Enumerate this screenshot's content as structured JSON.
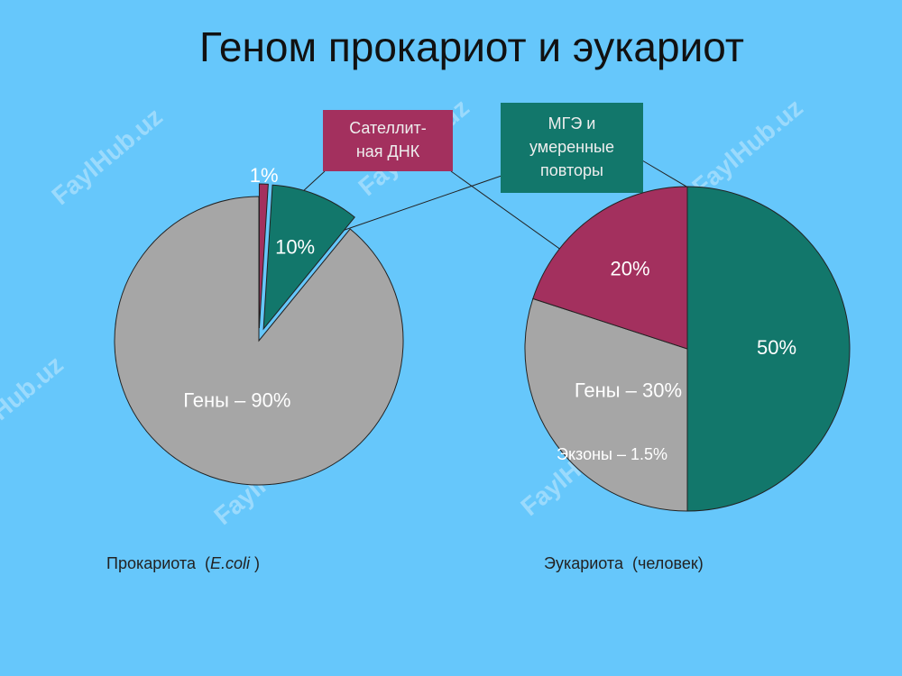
{
  "title": "Геном прокариот и эукариот",
  "watermark": "FaylHub.uz",
  "callouts": [
    {
      "lines": [
        "Сателлит-",
        "ная ДНК"
      ],
      "color": "#a3305e"
    },
    {
      "lines": [
        "МГЭ и",
        "умеренные",
        "повторы"
      ],
      "color": "#12776b"
    }
  ],
  "chart_data": [
    {
      "type": "pie",
      "caption": [
        "Прокариота  (",
        "E.coli",
        " )"
      ],
      "values": [
        1,
        10,
        90
      ],
      "value_labels": [
        "1%",
        "10%",
        "Гены – 90%"
      ],
      "colors": [
        "#a3305e",
        "#12776b",
        "#a6a6a6"
      ]
    },
    {
      "type": "pie",
      "caption": [
        "Эукариота  (человек)"
      ],
      "values": [
        50,
        30,
        20
      ],
      "value_labels": [
        "50%",
        "Гены – 30%",
        "20%"
      ],
      "colors": [
        "#12776b",
        "#a6a6a6",
        "#a3305e"
      ],
      "annotations": [
        "Экзоны – 1.5%"
      ]
    }
  ]
}
